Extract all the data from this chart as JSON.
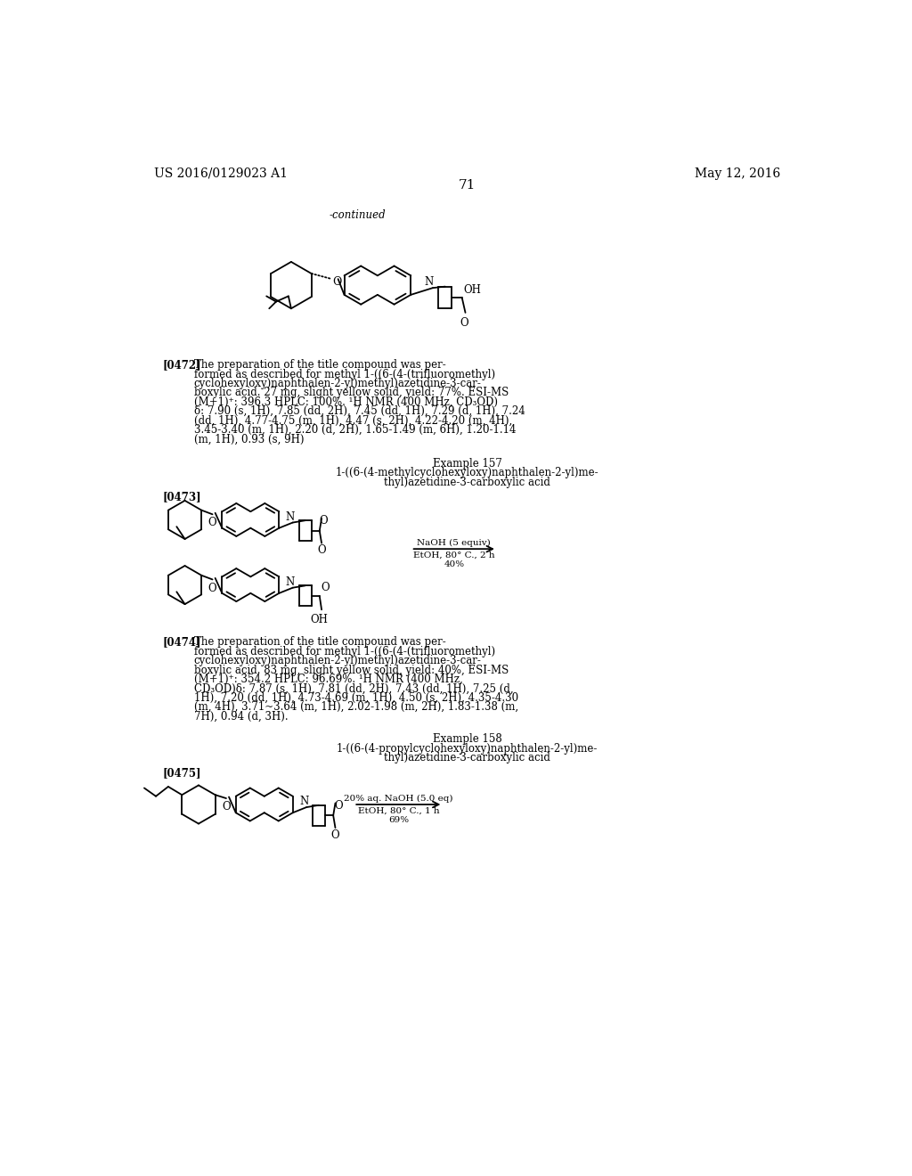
{
  "background_color": "#ffffff",
  "header_left": "US 2016/0129023 A1",
  "header_right": "May 12, 2016",
  "page_number": "71",
  "continued_label": "-continued",
  "paragraph_0472_label": "[0472]",
  "paragraph_0473_label": "[0473]",
  "paragraph_0474_label": "[0474]",
  "paragraph_0475_label": "[0475]",
  "example_157_label": "Example 157",
  "example_157_title_line1": "1-((6-(4-methylcyclohexyloxy)naphthalen-2-yl)me-",
  "example_157_title_line2": "thyl)azetidine-3-carboxylic acid",
  "example_158_label": "Example 158",
  "example_158_title_line1": "1-((6-(4-propylcyclohexyloxy)naphthalen-2-yl)me-",
  "example_158_title_line2": "thyl)azetidine-3-carboxylic acid",
  "para_0472_line1": "The preparation of the title compound was per-",
  "para_0472_line2": "formed as described for methyl 1-((6-(4-(trifluoromethyl)",
  "para_0472_line3": "cyclohexyloxy)naphthalen-2-yl)methyl)azetidine-3-car-",
  "para_0472_line4": "boxylic acid. 27 mg, slight yellow solid, yield: 77%. ESI-MS",
  "para_0472_line5": "(M+1)⁺: 396.3 HPLC: 100%. ¹H NMR (400 MHz, CD₃OD)",
  "para_0472_line6": "δ: 7.90 (s, 1H), 7.85 (dd, 2H), 7.45 (dd, 1H), 7.29 (d, 1H), 7.24",
  "para_0472_line7": "(dd, 1H), 4.77-4.75 (m, 1H), 4.47 (s, 2H), 4.22-4.20 (m, 4H),",
  "para_0472_line8": "3.45-3.40 (m, 1H), 2.20 (d, 2H), 1.65-1.49 (m, 6H), 1.20-1.14",
  "para_0472_line9": "(m, 1H), 0.93 (s, 9H)",
  "para_0474_line1": "The preparation of the title compound was per-",
  "para_0474_line2": "formed as described for methyl 1-((6-(4-(trifluoromethyl)",
  "para_0474_line3": "cyclohexyloxy)naphthalen-2-yl)methyl)azetidine-3-car-",
  "para_0474_line4": "boxylic acid. 83 mg, slight yellow solid, yield: 40%, ESI-MS",
  "para_0474_line5": "(M+1)⁺: 354.2 HPLC: 96.69%. ¹H NMR (400 MHz,",
  "para_0474_line6": "CD₃OD)δ: 7.87 (s, 1H), 7.81 (dd, 2H), 7.43 (dd, 1H), 7.25 (d,",
  "para_0474_line7": "1H), 7.20 (dd, 1H), 4.73-4.69 (m, 1H), 4.50 (s, 2H), 4.35-4.30",
  "para_0474_line8": "(m, 4H), 3.71~3.64 (m, 1H), 2.02-1.98 (m, 2H), 1.83-1.38 (m,",
  "para_0474_line9": "7H), 0.94 (d, 3H).",
  "rxn157_line1": "NaOH (5 equiv)",
  "rxn157_line2": "EtOH, 80° C., 2 h",
  "rxn157_line3": "40%",
  "rxn158_line1": "20% aq. NaOH (5.0 eq)",
  "rxn158_line2": "EtOH, 80° C., 1 h",
  "rxn158_line3": "69%"
}
